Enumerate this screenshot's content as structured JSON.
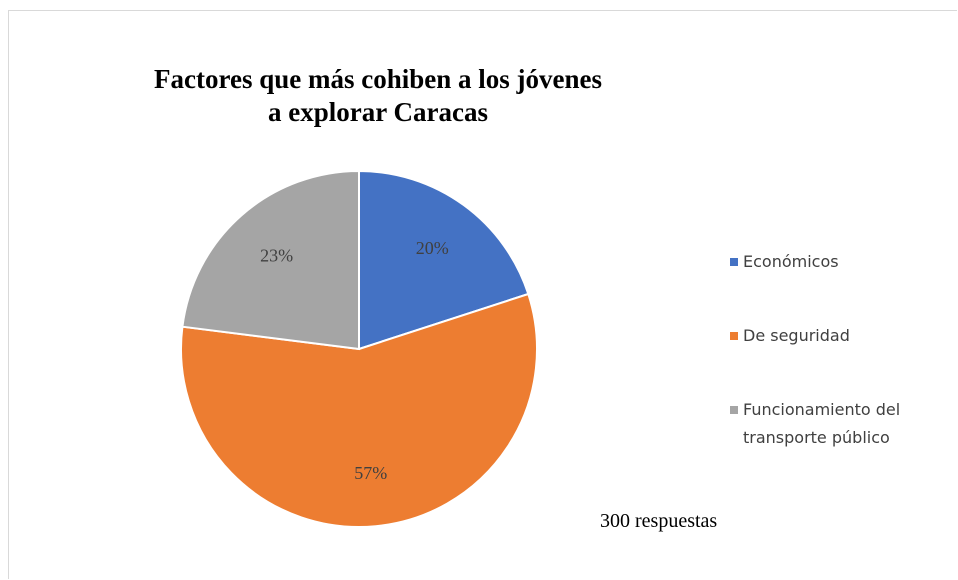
{
  "chart_data": {
    "type": "pie",
    "title": [
      "Factores que más cohiben a los jóvenes",
      "a explorar Caracas"
    ],
    "categories": [
      "Económicos",
      "De seguridad",
      "Funcionamiento del transporte público"
    ],
    "values": [
      20,
      57,
      23
    ],
    "value_labels": [
      "20%",
      "57%",
      "23%"
    ],
    "colors": [
      "#4472c4",
      "#ed7d31",
      "#a5a5a5"
    ],
    "annotation": "300 respuestas",
    "legend": "right"
  }
}
